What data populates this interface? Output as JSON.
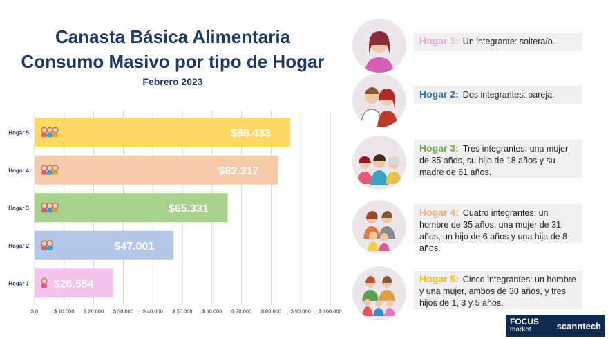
{
  "header": {
    "title_line1": "Canasta Básica Alimentaria",
    "title_line2": "Consumo Masivo por tipo de Hogar",
    "subtitle": "Febrero 2023"
  },
  "chart_data": {
    "type": "bar",
    "orientation": "horizontal",
    "categories": [
      "Hogar 5",
      "Hogar 4",
      "Hogar 3",
      "Hogar 2",
      "Hogar 1"
    ],
    "values": [
      86433,
      82317,
      65331,
      47001,
      26554
    ],
    "value_labels": [
      "$86.433",
      "$82.317",
      "$65.331",
      "$47.001",
      "$26.554"
    ],
    "colors": [
      "#ffd966",
      "#f7caac",
      "#a9d18e",
      "#b4c7e7",
      "#f4c4ec"
    ],
    "xlim": [
      0,
      100000
    ],
    "xticks": [
      0,
      10000,
      20000,
      30000,
      40000,
      50000,
      60000,
      70000,
      80000,
      90000,
      100000
    ],
    "xtick_labels": [
      "$ 0",
      "$ 10.000",
      "$ 20.000",
      "$ 30.000",
      "$ 40.000",
      "$ 50.000",
      "$ 60.000",
      "$ 70.000",
      "$ 80.000",
      "$ 90.000",
      "$ 100.000"
    ],
    "grid": true
  },
  "legend": [
    {
      "label": "Hogar 1:",
      "text": "Un integrante: soltera/o.",
      "color": "#f4a7e3"
    },
    {
      "label": "Hogar 2:",
      "text": "Dos integrantes: pareja.",
      "color": "#2e75b6"
    },
    {
      "label": "Hogar 3:",
      "text": "Tres integrantes: una mujer de 35 años, su hijo de 18 años y su madre de 61 años.",
      "color": "#70ad47"
    },
    {
      "label": "Hogar 4:",
      "text": "Cuatro integrantes: un hombre de 35 años, una mujer de 31 años, un hijo de 6 años y una hija de 8 años.",
      "color": "#f4b183"
    },
    {
      "label": "Hogar 5:",
      "text": "Cinco integrantes: un hombre y una mujer, ambos de 30 años, y tres hijos de 1, 3 y 5 años.",
      "color": "#ffc000"
    }
  ],
  "logo": {
    "brand1": "FOCUS",
    "brand1_sub": "market",
    "brand2": "scanntech"
  }
}
